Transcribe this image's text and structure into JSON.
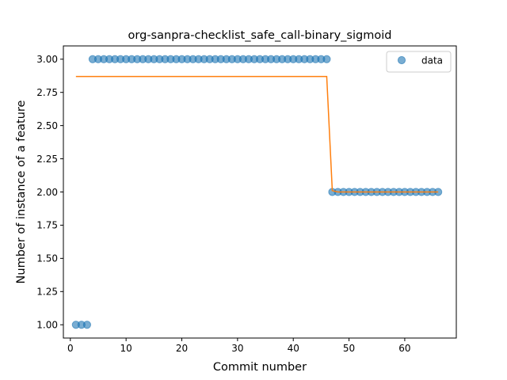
{
  "chart_data": {
    "type": "scatter",
    "title": "org-sanpra-checklist_safe_call-binary_sigmoid",
    "xlabel": "Commit number",
    "ylabel": "Number of instance of a feature",
    "xlim": [
      -1.25,
      69.25
    ],
    "ylim": [
      0.9,
      3.1
    ],
    "xticks": [
      0,
      10,
      20,
      30,
      40,
      50,
      60
    ],
    "yticks": [
      1.0,
      1.25,
      1.5,
      1.75,
      2.0,
      2.25,
      2.5,
      2.75,
      3.0
    ],
    "ytick_labels": [
      "1.00",
      "1.25",
      "1.50",
      "1.75",
      "2.00",
      "2.25",
      "2.50",
      "2.75",
      "3.00"
    ],
    "legend": {
      "position": "top-right",
      "entries": [
        "data"
      ]
    },
    "series": [
      {
        "name": "data",
        "kind": "scatter",
        "color": "#1f77b4",
        "x": [
          1,
          2,
          3,
          4,
          5,
          6,
          7,
          8,
          9,
          10,
          11,
          12,
          13,
          14,
          15,
          16,
          17,
          18,
          19,
          20,
          21,
          22,
          23,
          24,
          25,
          26,
          27,
          28,
          29,
          30,
          31,
          32,
          33,
          34,
          35,
          36,
          37,
          38,
          39,
          40,
          41,
          42,
          43,
          44,
          45,
          46,
          47,
          48,
          49,
          50,
          51,
          52,
          53,
          54,
          55,
          56,
          57,
          58,
          59,
          60,
          61,
          62,
          63,
          64,
          65,
          66
        ],
        "y": [
          1,
          1,
          1,
          3,
          3,
          3,
          3,
          3,
          3,
          3,
          3,
          3,
          3,
          3,
          3,
          3,
          3,
          3,
          3,
          3,
          3,
          3,
          3,
          3,
          3,
          3,
          3,
          3,
          3,
          3,
          3,
          3,
          3,
          3,
          3,
          3,
          3,
          3,
          3,
          3,
          3,
          3,
          3,
          3,
          3,
          3,
          2,
          2,
          2,
          2,
          2,
          2,
          2,
          2,
          2,
          2,
          2,
          2,
          2,
          2,
          2,
          2,
          2,
          2,
          2,
          2
        ]
      },
      {
        "kind": "line",
        "color": "#ff7f0e",
        "x": [
          1,
          2,
          3,
          4,
          5,
          6,
          7,
          8,
          9,
          10,
          11,
          12,
          13,
          14,
          15,
          16,
          17,
          18,
          19,
          20,
          21,
          22,
          23,
          24,
          25,
          26,
          27,
          28,
          29,
          30,
          31,
          32,
          33,
          34,
          35,
          36,
          37,
          38,
          39,
          40,
          41,
          42,
          43,
          44,
          45,
          46,
          47,
          48,
          49,
          50,
          51,
          52,
          53,
          54,
          55,
          56,
          57,
          58,
          59,
          60,
          61,
          62,
          63,
          64,
          65,
          66
        ],
        "y": [
          2.87,
          2.87,
          2.87,
          2.87,
          2.87,
          2.87,
          2.87,
          2.87,
          2.87,
          2.87,
          2.87,
          2.87,
          2.87,
          2.87,
          2.87,
          2.87,
          2.87,
          2.87,
          2.87,
          2.87,
          2.87,
          2.87,
          2.87,
          2.87,
          2.87,
          2.87,
          2.87,
          2.87,
          2.87,
          2.87,
          2.87,
          2.87,
          2.87,
          2.87,
          2.87,
          2.87,
          2.87,
          2.87,
          2.87,
          2.87,
          2.87,
          2.87,
          2.87,
          2.87,
          2.87,
          2.87,
          2.01,
          2.0,
          2.0,
          2.0,
          2.0,
          2.0,
          2.0,
          2.0,
          2.0,
          2.0,
          2.0,
          2.0,
          2.0,
          2.0,
          2.0,
          2.0,
          2.0,
          2.0,
          2.0,
          2.0
        ]
      }
    ]
  }
}
